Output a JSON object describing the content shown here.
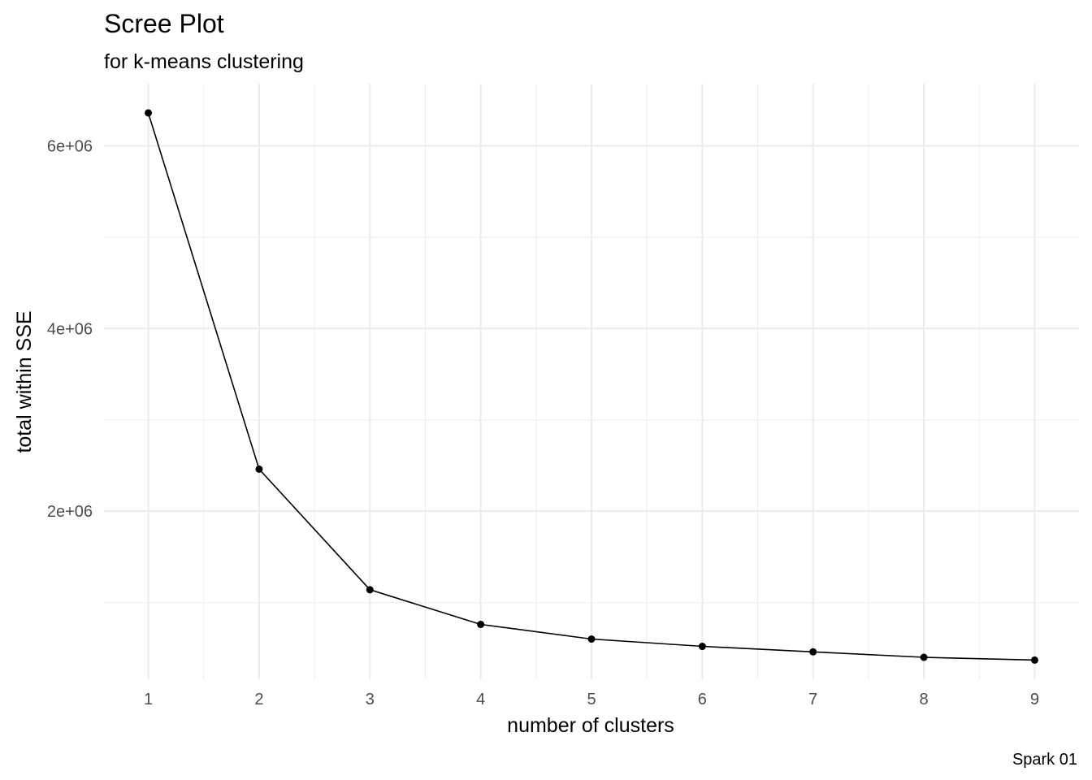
{
  "chart_data": {
    "type": "line",
    "title": "Scree Plot",
    "subtitle": "for k-means clustering",
    "xlabel": "number of clusters",
    "ylabel": "total within SSE",
    "caption": "Spark 01",
    "x": [
      1,
      2,
      3,
      4,
      5,
      6,
      7,
      8,
      9
    ],
    "series": [
      {
        "values": [
          6360000,
          2460000,
          1140000,
          760000,
          600000,
          520000,
          460000,
          400000,
          370000
        ],
        "color": "#000000"
      }
    ],
    "x_ticks": [
      1,
      2,
      3,
      4,
      5,
      6,
      7,
      8,
      9
    ],
    "x_tick_labels": [
      "1",
      "2",
      "3",
      "4",
      "5",
      "6",
      "7",
      "8",
      "9"
    ],
    "y_ticks": [
      2000000,
      4000000,
      6000000
    ],
    "y_tick_labels": [
      "2e+06",
      "4e+06",
      "6e+06"
    ],
    "xlim": [
      0.6,
      9.4
    ],
    "ylim": [
      160000,
      6680000
    ],
    "grid": true,
    "legend": "none"
  }
}
